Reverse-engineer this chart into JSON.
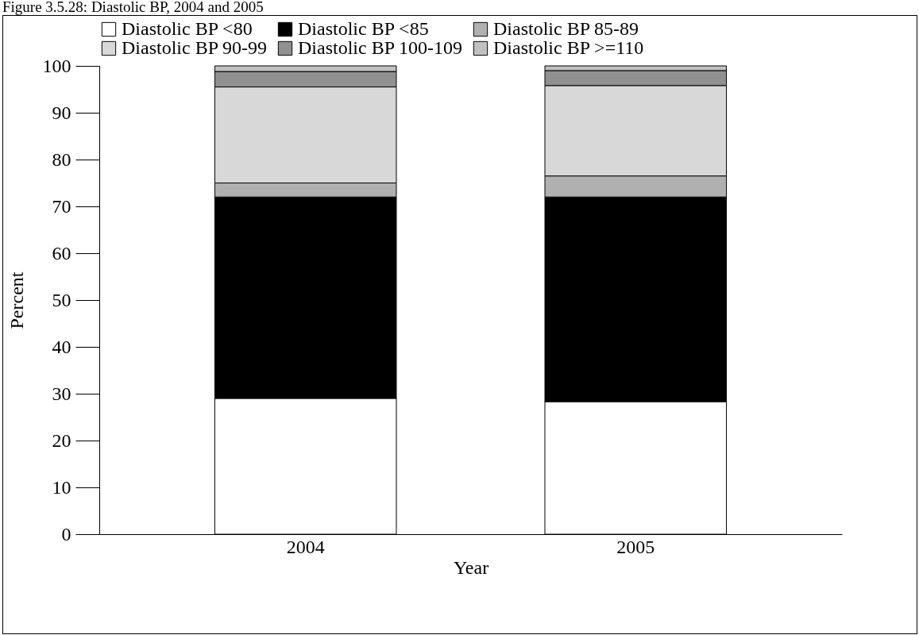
{
  "chart_data": {
    "type": "bar",
    "title": "Figure 3.5.28: Diastolic BP, 2004 and 2005",
    "xlabel": "Year",
    "ylabel": "Percent",
    "categories": [
      "2004",
      "2005"
    ],
    "stacked": true,
    "legend": "top",
    "grid": false,
    "ylim": [
      0,
      100
    ],
    "yticks": [
      0,
      10,
      20,
      30,
      40,
      50,
      60,
      70,
      80,
      90,
      100
    ],
    "series": [
      {
        "name": "Diastolic BP <80",
        "color": "#ffffff",
        "values": [
          29,
          28.3
        ]
      },
      {
        "name": "Diastolic BP <85",
        "color": "#000000",
        "values": [
          43,
          43.7
        ]
      },
      {
        "name": "Diastolic BP 85-89",
        "color": "#b0b0b0",
        "values": [
          3,
          4.5
        ]
      },
      {
        "name": "Diastolic BP 90-99",
        "color": "#d8d8d8",
        "values": [
          20.5,
          19.3
        ]
      },
      {
        "name": "Diastolic BP 100-109",
        "color": "#909090",
        "values": [
          3.3,
          3.2
        ]
      },
      {
        "name": "Diastolic BP >=110",
        "color": "#c0c0c0",
        "values": [
          1.2,
          1.0
        ]
      }
    ]
  }
}
